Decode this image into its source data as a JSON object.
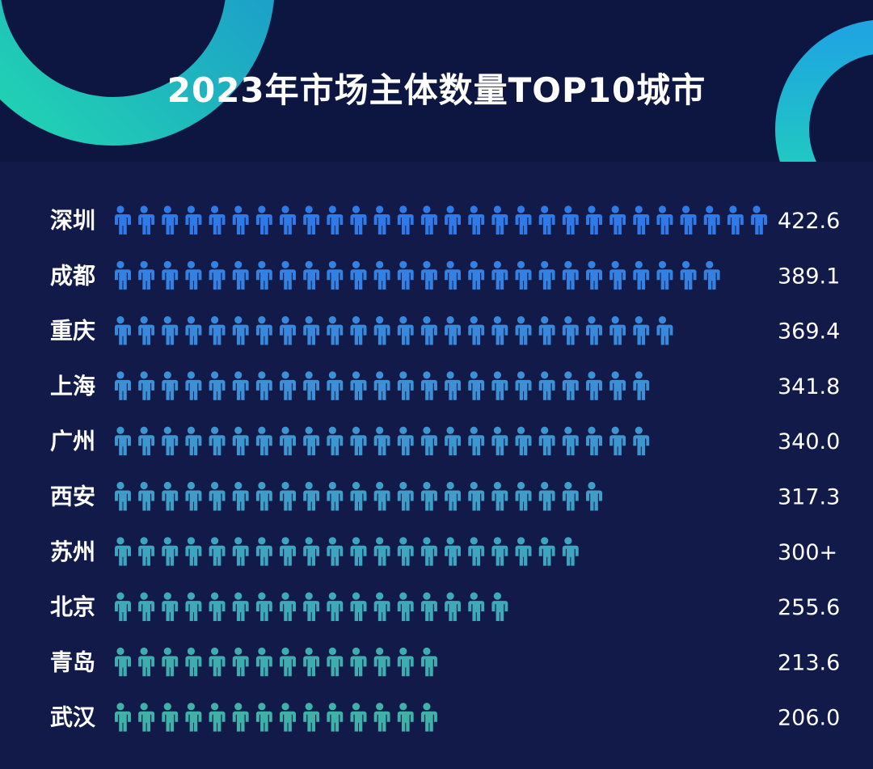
{
  "chart_data": {
    "type": "bar",
    "title": "2023年市场主体数量TOP10城市",
    "categories": [
      "深圳",
      "成都",
      "重庆",
      "上海",
      "广州",
      "西安",
      "苏州",
      "北京",
      "青岛",
      "武汉"
    ],
    "values": [
      422.6,
      389.1,
      369.4,
      341.8,
      340.0,
      317.3,
      300,
      255.6,
      213.6,
      206.0
    ],
    "value_labels": [
      "422.6",
      "389.1",
      "369.4",
      "341.8",
      "340.0",
      "317.3",
      "300+",
      "255.6",
      "213.6",
      "206.0"
    ],
    "icon_counts": [
      28,
      26,
      24,
      23,
      23,
      21,
      20,
      17,
      14,
      14
    ],
    "mark": "person-icon",
    "colors": {
      "background": "#0d1640",
      "panel": "#111a48",
      "icon_gradient": [
        "#2f7ae6",
        "#3d8fd6",
        "#3ea5c0",
        "#3fb1a8"
      ],
      "text": "#ffffff",
      "accent": "#2ed8b0"
    }
  }
}
